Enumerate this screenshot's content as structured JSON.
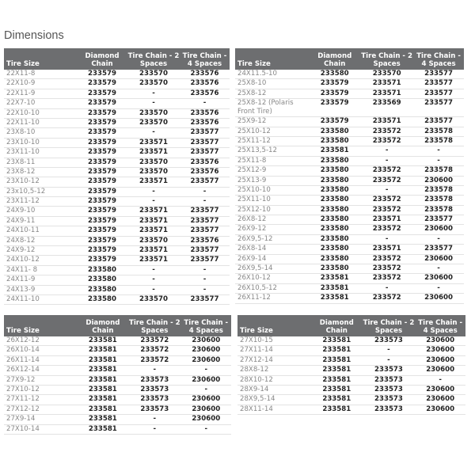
{
  "title": "Dimensions",
  "headers": [
    "Tire Size",
    "Diamond Chain",
    "Tire Chain - 2 Spaces",
    "Tire Chain - 4 Spaces"
  ],
  "tables": [
    {
      "rows": [
        [
          "22X11-8",
          "233579",
          "233570",
          "233576"
        ],
        [
          "22X10-9",
          "233579",
          "233570",
          "233576"
        ],
        [
          "22X11-9",
          "233579",
          "-",
          "233576"
        ],
        [
          "22X7-10",
          "233579",
          "-",
          "-"
        ],
        [
          "22X10-10",
          "233579",
          "233570",
          "233576"
        ],
        [
          "22X11-10",
          "233579",
          "233570",
          "233576"
        ],
        [
          "23X8-10",
          "233579",
          "-",
          "233577"
        ],
        [
          "23X10-10",
          "233579",
          "233571",
          "233577"
        ],
        [
          "23X11-10",
          "233579",
          "233571",
          "233577"
        ],
        [
          "23X8-11",
          "233579",
          "233570",
          "233576"
        ],
        [
          "23X8-12",
          "233579",
          "233570",
          "233576"
        ],
        [
          "23X10-12",
          "233579",
          "233571",
          "233577"
        ],
        [
          "23x10,5-12",
          "233579",
          "-",
          "-"
        ],
        [
          "23X11-12",
          "233579",
          "-",
          "-"
        ],
        [
          "24X9-10",
          "233579",
          "233571",
          "233577"
        ],
        [
          "24X9-11",
          "233579",
          "233571",
          "233577"
        ],
        [
          "24X10-11",
          "233579",
          "233571",
          "233577"
        ],
        [
          "24X8-12",
          "233579",
          "233570",
          "233576"
        ],
        [
          "24X9-12",
          "233579",
          "233571",
          "233577"
        ],
        [
          "24X10-12",
          "233579",
          "233571",
          "233577"
        ],
        [
          "24X11- 8",
          "233580",
          "-",
          "-"
        ],
        [
          "24X11-9",
          "233580",
          "-",
          "-"
        ],
        [
          "24X13-9",
          "233580",
          "-",
          "-"
        ],
        [
          "24X11-10",
          "233580",
          "233570",
          "233577"
        ]
      ]
    },
    {
      "rows": [
        [
          "24X11.5-10",
          "233580",
          "233570",
          "233577"
        ],
        [
          "25X8-10",
          "233579",
          "233571",
          "233577"
        ],
        [
          "25X8-12",
          "233579",
          "233571",
          "233577"
        ],
        [
          "25X8-12 (Polaris Front Tire)",
          "233579",
          "233569",
          "233577"
        ],
        [
          "25X9-12",
          "233579",
          "233571",
          "233577"
        ],
        [
          "25X10-12",
          "233580",
          "233572",
          "233578"
        ],
        [
          "25X11-12",
          "233580",
          "233572",
          "233578"
        ],
        [
          "25X13,5-12",
          "233581",
          "-",
          "-"
        ],
        [
          "25X11-8",
          "233580",
          "-",
          "-"
        ],
        [
          "25X12-9",
          "233580",
          "233572",
          "233578"
        ],
        [
          "25X13-9",
          "233580",
          "233572",
          "230600"
        ],
        [
          "25X10-10",
          "233580",
          "-",
          "233578"
        ],
        [
          "25X11-10",
          "233580",
          "233572",
          "233578"
        ],
        [
          "25X12-10",
          "233580",
          "233572",
          "233578"
        ],
        [
          "26X8-12",
          "233580",
          "233571",
          "233577"
        ],
        [
          "26X9-12",
          "233580",
          "233572",
          "230600"
        ],
        [
          "26X9,5-12",
          "233580",
          "-",
          "-"
        ],
        [
          "26X8-14",
          "233580",
          "233571",
          "233577"
        ],
        [
          "26X9-14",
          "233580",
          "233572",
          "230600"
        ],
        [
          "26X9,5-14",
          "233580",
          "233572",
          "-"
        ],
        [
          "26X10-12",
          "233581",
          "233572",
          "230600"
        ],
        [
          "26X10,5-12",
          "233581",
          "-",
          "-"
        ],
        [
          "26X11-12",
          "233581",
          "233572",
          "230600"
        ]
      ]
    },
    {
      "rows": [
        [
          "26X12-12",
          "233581",
          "233572",
          "230600"
        ],
        [
          "26X10-14",
          "233581",
          "233572",
          "230600"
        ],
        [
          "26X11-14",
          "233581",
          "233572",
          "230600"
        ],
        [
          "26X12-14",
          "233581",
          "-",
          "-"
        ],
        [
          "27X9-12",
          "233581",
          "233573",
          "230600"
        ],
        [
          "27X10-12",
          "233581",
          "233573",
          "-"
        ],
        [
          "27X11-12",
          "233581",
          "233573",
          "230600"
        ],
        [
          "27X12-12",
          "233581",
          "233573",
          "230600"
        ],
        [
          "27X9-14",
          "233581",
          "-",
          "230600"
        ],
        [
          "27X10-14",
          "233581",
          "-",
          "-"
        ]
      ]
    },
    {
      "rows": [
        [
          "27X10-15",
          "233581",
          "233573",
          "230600"
        ],
        [
          "27X11-14",
          "233581",
          "-",
          "230600"
        ],
        [
          "27X12-14",
          "233581",
          "-",
          "230600"
        ],
        [
          "28X8-12",
          "233581",
          "233573",
          "230600"
        ],
        [
          "28X10-12",
          "233581",
          "233573",
          "-"
        ],
        [
          "28X9-14",
          "233581",
          "233573",
          "230600"
        ],
        [
          "28X9,5-14",
          "233581",
          "233573",
          "230600"
        ],
        [
          "28X11-14",
          "233581",
          "233573",
          "230600"
        ]
      ]
    }
  ]
}
